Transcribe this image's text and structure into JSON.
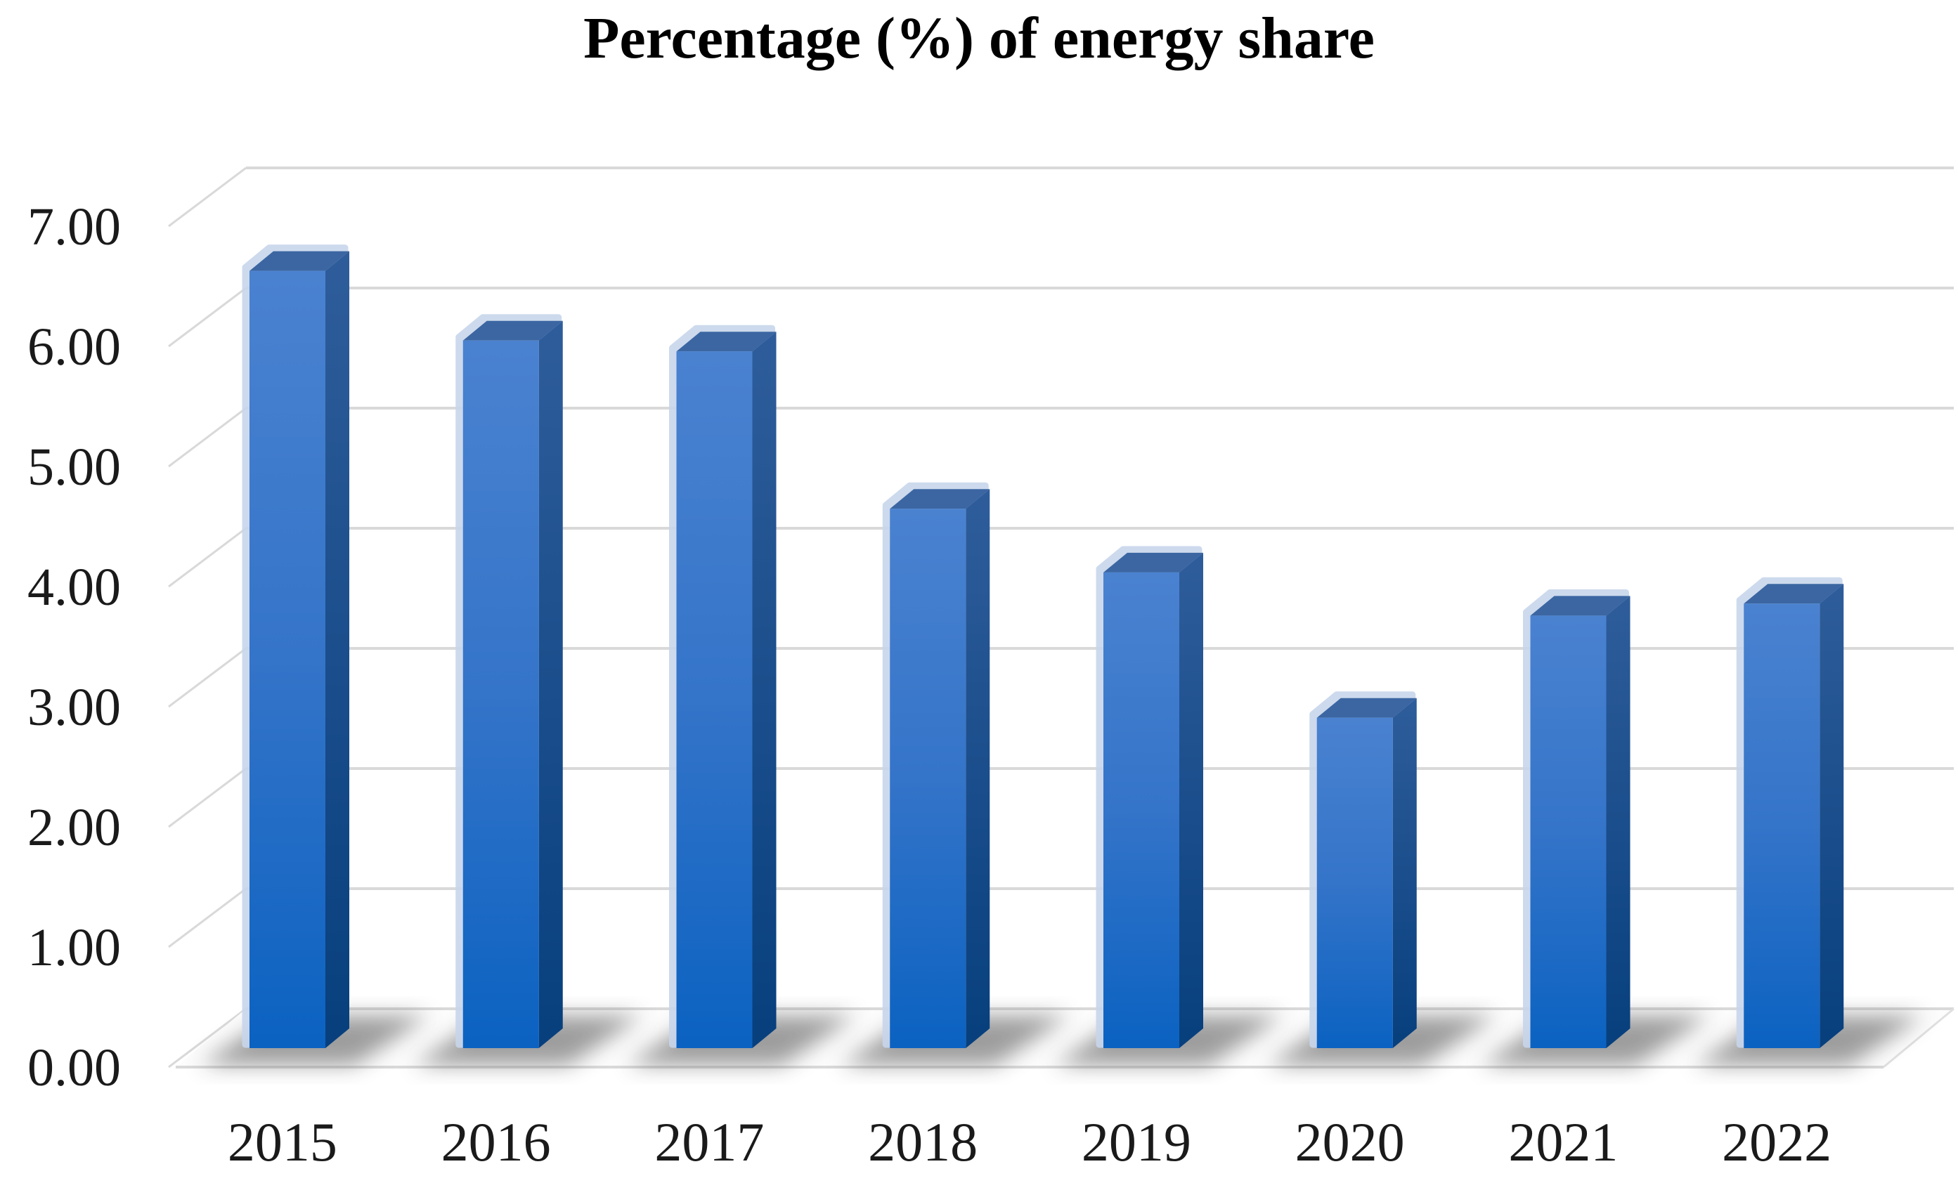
{
  "title": "Percentage (%) of energy share",
  "chart_data": {
    "type": "bar",
    "style": "3d-column",
    "title": "Percentage (%) of energy share",
    "categories": [
      "2015",
      "2016",
      "2017",
      "2018",
      "2019",
      "2020",
      "2021",
      "2022"
    ],
    "values": [
      6.47,
      5.89,
      5.8,
      4.49,
      3.96,
      2.75,
      3.6,
      3.7
    ],
    "xlabel": "",
    "ylabel": "",
    "ylim": [
      0,
      7
    ],
    "ytick_step": 1,
    "yticks": [
      "0.00",
      "1.00",
      "2.00",
      "3.00",
      "4.00",
      "5.00",
      "6.00",
      "7.00"
    ],
    "grid": true,
    "legend": false,
    "colors": {
      "bar_front_top": "#4a82d0",
      "bar_front_mid": "#3474c9",
      "bar_front_bottom": "#0b62c1",
      "bar_side_top": "#2f5d9b",
      "bar_side_bottom": "#073f7d",
      "bar_top_face": "#3b66a2",
      "bar_halo": "#c8d6ec",
      "gridline": "#d9d9d9",
      "floor": "#fcfcfc",
      "shadow": "#5f5f5f",
      "text": "#1a1a1a",
      "background": "#ffffff"
    }
  }
}
